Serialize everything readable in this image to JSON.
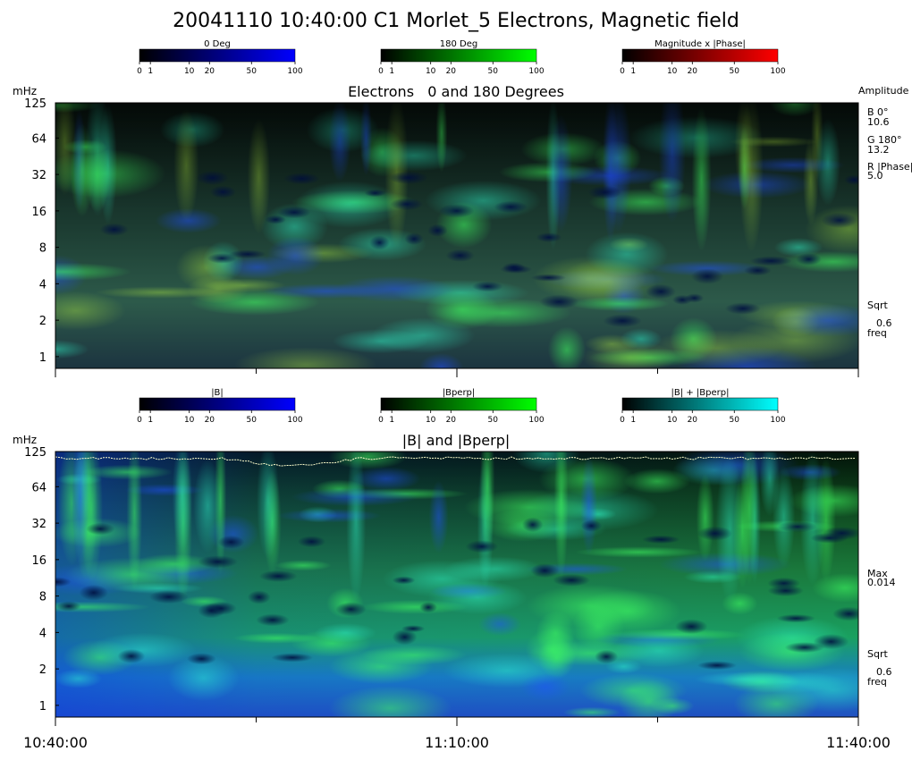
{
  "title": "20041110 10:40:00 C1 Morlet_5 Electrons, Magnetic field",
  "colors": {
    "blue": "#0000ff",
    "green": "#00ff00",
    "red": "#ff0000",
    "cyan": "#00ffff",
    "phase_line": "#ffffcc"
  },
  "colorbars_top": [
    {
      "label": "0 Deg",
      "color": "#0000ff",
      "ticks": [
        "0",
        "1",
        "10",
        "20",
        "50",
        "100"
      ]
    },
    {
      "label": "180 Deg",
      "color": "#00ff00",
      "ticks": [
        "0",
        "1",
        "10",
        "20",
        "50",
        "100"
      ]
    },
    {
      "label": "Magnitude x |Phase|",
      "color": "#ff0000",
      "ticks": [
        "0",
        "1",
        "10",
        "20",
        "50",
        "100"
      ]
    }
  ],
  "colorbars_bottom": [
    {
      "label": "|B|",
      "color": "#0000ff",
      "ticks": [
        "0",
        "1",
        "10",
        "20",
        "50",
        "100"
      ]
    },
    {
      "label": "|Bperp|",
      "color": "#00ff00",
      "ticks": [
        "0",
        "1",
        "10",
        "20",
        "50",
        "100"
      ]
    },
    {
      "label": "|B| + |Bperp|",
      "color": "#00ffff",
      "ticks": [
        "0",
        "1",
        "10",
        "20",
        "50",
        "100"
      ]
    }
  ],
  "chart_data": [
    {
      "type": "heatmap",
      "title": "Electrons   0 and 180 Degrees",
      "ylabel": "mHz",
      "y_scale": "log2",
      "y_ticks": [
        "125",
        "64",
        "32",
        "16",
        "8",
        "4",
        "2",
        "1"
      ],
      "ylim": [
        0.8,
        125
      ],
      "xlim": [
        "10:40:00",
        "11:40:00"
      ],
      "side_panel": {
        "header": "Amplitude",
        "entries": [
          {
            "label": "B 0°",
            "value": "10.6"
          },
          {
            "label": "G 180°",
            "value": "13.2"
          },
          {
            "label": "R |Phase|",
            "value": "5.0"
          }
        ],
        "scale_label": "Sqrt",
        "scale_value": "0.6",
        "scale_unit": "freq"
      }
    },
    {
      "type": "heatmap",
      "title": "|B| and |Bperp|",
      "ylabel": "mHz",
      "y_scale": "log2",
      "y_ticks": [
        "125",
        "64",
        "32",
        "16",
        "8",
        "4",
        "2",
        "1"
      ],
      "ylim": [
        0.8,
        125
      ],
      "xlim": [
        "10:40:00",
        "11:40:00"
      ],
      "x_ticks": [
        "10:40:00",
        "11:10:00",
        "11:40:00"
      ],
      "side_panel": {
        "max_label": "Max",
        "max_value": "0.014",
        "scale_label": "Sqrt",
        "scale_value": "0.6",
        "scale_unit": "freq"
      }
    }
  ]
}
